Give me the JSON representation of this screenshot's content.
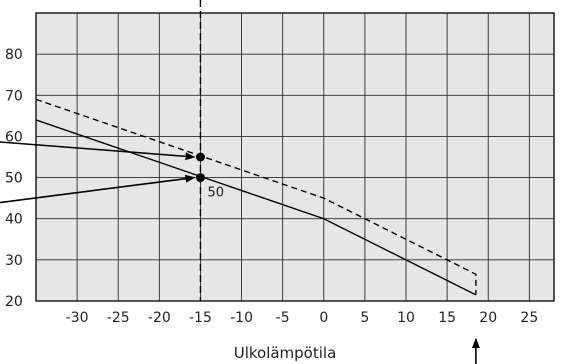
{
  "chart_data": {
    "type": "line",
    "title": "",
    "xlabel": "Ulkolämpötila",
    "ylabel": "",
    "xlim": [
      -35,
      28
    ],
    "ylim": [
      20,
      90
    ],
    "x_ticks": [
      -30,
      -25,
      -20,
      -15,
      -10,
      -5,
      0,
      5,
      10,
      15,
      20,
      25
    ],
    "y_ticks": [
      20,
      30,
      40,
      50,
      60,
      70,
      80
    ],
    "x_tick_labels": [
      "-30",
      "-25",
      "-20",
      "-15",
      "-10",
      "-5",
      "0",
      "5",
      "10",
      "15",
      "20",
      "25"
    ],
    "y_tick_labels": [
      "20",
      "30",
      "40",
      "50",
      "60",
      "70",
      "80"
    ],
    "grid": true,
    "plot_background": "#e6e6e6",
    "series": [
      {
        "style": "solid",
        "color": "#000000",
        "points": [
          [
            -35,
            64
          ],
          [
            0,
            40
          ],
          [
            18.5,
            21.5
          ]
        ]
      },
      {
        "style": "dashed",
        "color": "#000000",
        "points": [
          [
            -35,
            69
          ],
          [
            0,
            45
          ],
          [
            18.5,
            26.5
          ],
          [
            18.5,
            21.5
          ]
        ]
      }
    ],
    "markers": [
      {
        "x": -15,
        "y": 55
      },
      {
        "x": -15,
        "y": 50
      }
    ],
    "reference_lines": [
      {
        "orientation": "vertical",
        "x": -15,
        "style": "dashed"
      }
    ],
    "annotations": [
      {
        "text": "50",
        "x": -15,
        "y": 50
      }
    ],
    "pointer_arrows": [
      {
        "target": [
          -15,
          55
        ]
      },
      {
        "target": [
          -15,
          50
        ]
      },
      {
        "target": [
          18.5,
          20
        ],
        "direction": "up"
      }
    ]
  }
}
